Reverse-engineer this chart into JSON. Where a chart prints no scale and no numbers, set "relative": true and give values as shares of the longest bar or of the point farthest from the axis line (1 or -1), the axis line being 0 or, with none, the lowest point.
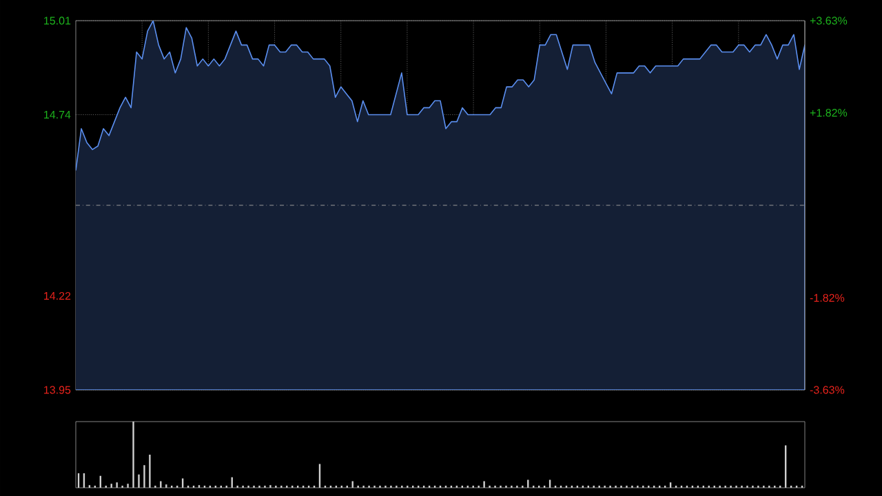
{
  "chart_data": [
    {
      "type": "area",
      "ylim": [
        13.95,
        15.01
      ],
      "y2lim": [
        -3.63,
        3.63
      ],
      "grid": true,
      "marker": "none",
      "tick_labels": "y",
      "categories": [
        null,
        null,
        null,
        null,
        null,
        null,
        null,
        null,
        null,
        null,
        null,
        null,
        null,
        null,
        null,
        null,
        null,
        null,
        null,
        null,
        null,
        null,
        null,
        null,
        null,
        null,
        null,
        null,
        null,
        null,
        null,
        null,
        null,
        null,
        null,
        null,
        null,
        null,
        null,
        null,
        null,
        null,
        null,
        null,
        null,
        null,
        null,
        null,
        null,
        null,
        null,
        null,
        null,
        null,
        null,
        null,
        null,
        null,
        null,
        null,
        null,
        null,
        null,
        null,
        null,
        null,
        null,
        null,
        null,
        null,
        null,
        null,
        null,
        null,
        null,
        null,
        null,
        null,
        null,
        null,
        null,
        null,
        null,
        null,
        null,
        null,
        null,
        null,
        null,
        null,
        null,
        null,
        null,
        null,
        null,
        null,
        null,
        null,
        null,
        null,
        null,
        null,
        null,
        null,
        null,
        null,
        null,
        null,
        null,
        null,
        null,
        null,
        null,
        null,
        null,
        null,
        null,
        null,
        null,
        null,
        null,
        null,
        null,
        null,
        null,
        null,
        null,
        null,
        null,
        null,
        null,
        null,
        null
      ],
      "yticks": [
        13.95,
        14.22,
        14.74,
        15.01
      ],
      "y2ticks": [
        {
          "value": -3.63,
          "label": "-3.63%"
        },
        {
          "value": -1.82,
          "label": "-1.82%"
        },
        {
          "value": 1.82,
          "label": "+1.82%"
        },
        {
          "value": 3.63,
          "label": "+3.63%"
        }
      ],
      "ref_lines": [
        {
          "axis": "y",
          "value": 14.48,
          "color": "#9a9a9a",
          "line_style": "dashdot"
        }
      ],
      "series": [
        {
          "color": "#5b8ff0",
          "values": [
            14.58,
            14.7,
            14.66,
            14.64,
            14.65,
            14.7,
            14.68,
            14.72,
            14.76,
            14.79,
            14.76,
            14.92,
            14.9,
            14.98,
            15.01,
            14.94,
            14.9,
            14.92,
            14.86,
            14.9,
            14.99,
            14.96,
            14.88,
            14.9,
            14.88,
            14.9,
            14.88,
            14.9,
            14.94,
            14.98,
            14.94,
            14.94,
            14.9,
            14.9,
            14.88,
            14.94,
            14.94,
            14.92,
            14.92,
            14.94,
            14.94,
            14.92,
            14.92,
            14.9,
            14.9,
            14.9,
            14.88,
            14.79,
            14.82,
            14.8,
            14.78,
            14.72,
            14.78,
            14.74,
            14.74,
            14.74,
            14.74,
            14.74,
            14.8,
            14.86,
            14.74,
            14.74,
            14.74,
            14.76,
            14.76,
            14.78,
            14.78,
            14.7,
            14.72,
            14.72,
            14.76,
            14.74,
            14.74,
            14.74,
            14.74,
            14.74,
            14.76,
            14.76,
            14.82,
            14.82,
            14.84,
            14.84,
            14.82,
            14.84,
            14.94,
            14.94,
            14.97,
            14.97,
            14.92,
            14.87,
            14.94,
            14.94,
            14.94,
            14.94,
            14.89,
            14.86,
            14.83,
            14.8,
            14.86,
            14.86,
            14.86,
            14.86,
            14.88,
            14.88,
            14.86,
            14.88,
            14.88,
            14.88,
            14.88,
            14.88,
            14.9,
            14.9,
            14.9,
            14.9,
            14.92,
            14.94,
            14.94,
            14.92,
            14.92,
            14.92,
            14.94,
            14.94,
            14.92,
            14.94,
            14.94,
            14.97,
            14.94,
            14.9,
            14.94,
            14.94,
            14.97,
            14.87,
            14.94
          ]
        }
      ]
    },
    {
      "type": "bar",
      "relative": true,
      "categories": [
        null,
        null,
        null,
        null,
        null,
        null,
        null,
        null,
        null,
        null,
        null,
        null,
        null,
        null,
        null,
        null,
        null,
        null,
        null,
        null,
        null,
        null,
        null,
        null,
        null,
        null,
        null,
        null,
        null,
        null,
        null,
        null,
        null,
        null,
        null,
        null,
        null,
        null,
        null,
        null,
        null,
        null,
        null,
        null,
        null,
        null,
        null,
        null,
        null,
        null,
        null,
        null,
        null,
        null,
        null,
        null,
        null,
        null,
        null,
        null,
        null,
        null,
        null,
        null,
        null,
        null,
        null,
        null,
        null,
        null,
        null,
        null,
        null,
        null,
        null,
        null,
        null,
        null,
        null,
        null,
        null,
        null,
        null,
        null,
        null,
        null,
        null,
        null,
        null,
        null,
        null,
        null,
        null,
        null,
        null,
        null,
        null,
        null,
        null,
        null,
        null,
        null,
        null,
        null,
        null,
        null,
        null,
        null,
        null,
        null,
        null,
        null,
        null,
        null,
        null,
        null,
        null,
        null,
        null,
        null,
        null,
        null,
        null,
        null,
        null,
        null,
        null,
        null,
        null,
        null,
        null,
        null,
        null
      ],
      "series": [
        {
          "color": "#d0d0d0",
          "values": [
            0.22,
            0.22,
            0.04,
            0.03,
            0.18,
            0.03,
            0.06,
            0.08,
            0.03,
            0.06,
            1.0,
            0.2,
            0.34,
            0.5,
            0.03,
            0.1,
            0.05,
            0.03,
            0.03,
            0.14,
            0.03,
            0.03,
            0.04,
            0.03,
            0.03,
            0.03,
            0.03,
            0.03,
            0.16,
            0.03,
            0.03,
            0.03,
            0.03,
            0.03,
            0.03,
            0.04,
            0.03,
            0.03,
            0.03,
            0.03,
            0.03,
            0.03,
            0.03,
            0.03,
            0.36,
            0.03,
            0.03,
            0.03,
            0.03,
            0.03,
            0.1,
            0.03,
            0.03,
            0.03,
            0.03,
            0.03,
            0.03,
            0.03,
            0.03,
            0.03,
            0.03,
            0.03,
            0.03,
            0.03,
            0.03,
            0.03,
            0.03,
            0.03,
            0.03,
            0.03,
            0.03,
            0.03,
            0.03,
            0.03,
            0.1,
            0.03,
            0.03,
            0.03,
            0.03,
            0.03,
            0.03,
            0.03,
            0.12,
            0.03,
            0.03,
            0.03,
            0.12,
            0.03,
            0.03,
            0.03,
            0.03,
            0.03,
            0.03,
            0.03,
            0.03,
            0.03,
            0.03,
            0.03,
            0.03,
            0.03,
            0.03,
            0.03,
            0.03,
            0.03,
            0.03,
            0.03,
            0.03,
            0.03,
            0.08,
            0.03,
            0.03,
            0.03,
            0.03,
            0.03,
            0.03,
            0.03,
            0.03,
            0.03,
            0.03,
            0.03,
            0.03,
            0.03,
            0.03,
            0.03,
            0.03,
            0.03,
            0.03,
            0.03,
            0.03,
            0.64,
            0.03,
            0.03,
            0.03
          ]
        }
      ]
    }
  ]
}
